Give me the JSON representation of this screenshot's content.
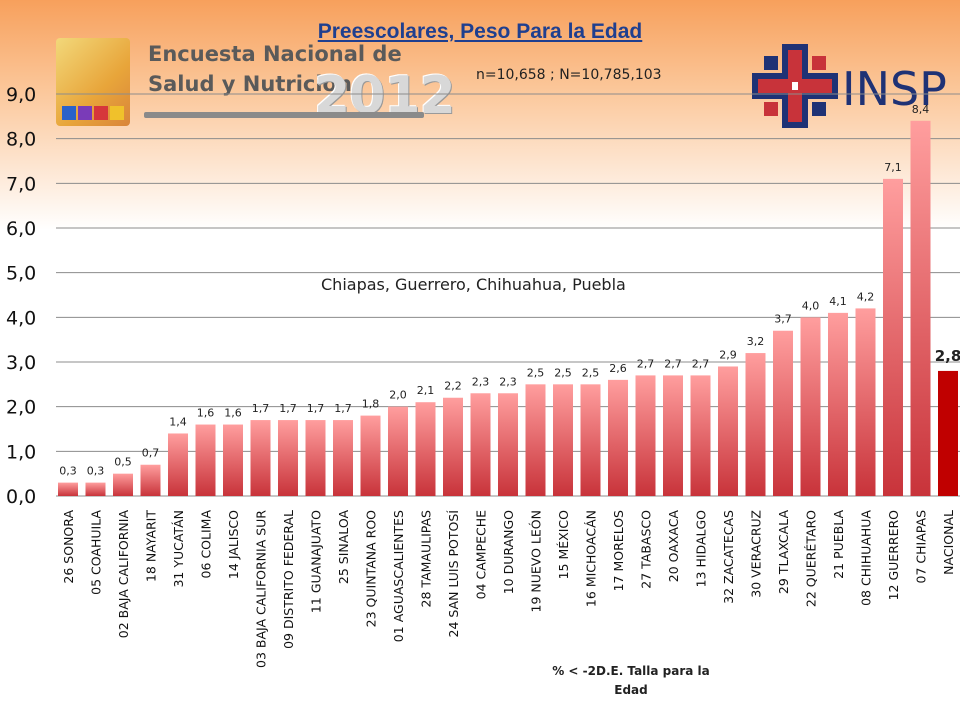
{
  "title": "Preescolares, Peso Para la Edad",
  "subtitle": "n=10,658 ; N=10,785,103",
  "annotation": "Chiapas, Guerrero, Chihuahua, Puebla",
  "logos": {
    "survey": {
      "line1": "Encuesta Nacional de",
      "line2": "Salud y Nutrición",
      "year": "2012"
    },
    "insp": {
      "text": "INSP"
    }
  },
  "colors": {
    "bar_top": "#ff9e9e",
    "bar_bottom": "#c8333a",
    "national_bar": "#c00000",
    "grid": "#8c8c8c"
  },
  "chart_data": {
    "type": "bar",
    "title": "Preescolares, Peso Para la Edad",
    "xlabel": "% < -2D.E. Talla para la Edad",
    "ylabel": "",
    "ylim": [
      0,
      9
    ],
    "yticks": [
      "0,0",
      "1,0",
      "2,0",
      "3,0",
      "4,0",
      "5,0",
      "6,0",
      "7,0",
      "8,0",
      "9,0"
    ],
    "grid": true,
    "categories": [
      "26 SONORA",
      "05 COAHUILA",
      "02 BAJA CALIFORNIA",
      "18 NAYARIT",
      "31 YUCATÁN",
      "06 COLIMA",
      "14 JALISCO",
      "03 BAJA CALIFORNIA SUR",
      "09 DISTRITO FEDERAL",
      "11 GUANAJUATO",
      "25 SINALOA",
      "23 QUINTANA ROO",
      "01 AGUASCALIENTES",
      "28 TAMAULIPAS",
      "24 SAN LUIS POTOSÍ",
      "04 CAMPECHE",
      "10 DURANGO",
      "19 NUEVO LEÓN",
      "15 MÉXICO",
      "16 MICHOACÁN",
      "17 MORELOS",
      "27 TABASCO",
      "20 OAXACA",
      "13 HIDALGO",
      "32 ZACATECAS",
      "30 VERACRUZ",
      "29 TLAXCALA",
      "22 QUERÉTARO",
      "21 PUEBLA",
      "08 CHIHUAHUA",
      "12 GUERRERO",
      "07 CHIAPAS",
      "NACIONAL"
    ],
    "values": [
      0.3,
      0.3,
      0.5,
      0.7,
      1.4,
      1.6,
      1.6,
      1.7,
      1.7,
      1.7,
      1.7,
      1.8,
      2.0,
      2.1,
      2.2,
      2.3,
      2.3,
      2.5,
      2.5,
      2.5,
      2.6,
      2.7,
      2.7,
      2.7,
      2.9,
      3.2,
      3.7,
      4.0,
      4.1,
      4.2,
      7.1,
      8.4,
      2.8
    ],
    "labels": [
      "0,3",
      "0,3",
      "0,5",
      "0,7",
      "1,4",
      "1,6",
      "1,6",
      "1,7",
      "1,7",
      "1,7",
      "1,7",
      "1,8",
      "2,0",
      "2,1",
      "2,2",
      "2,3",
      "2,3",
      "2,5",
      "2,5",
      "2,5",
      "2,6",
      "2,7",
      "2,7",
      "2,7",
      "2,9",
      "3,2",
      "3,7",
      "4,0",
      "4,1",
      "4,2",
      "7,1",
      "8,4",
      "2,8"
    ],
    "highlight_index": 32
  }
}
